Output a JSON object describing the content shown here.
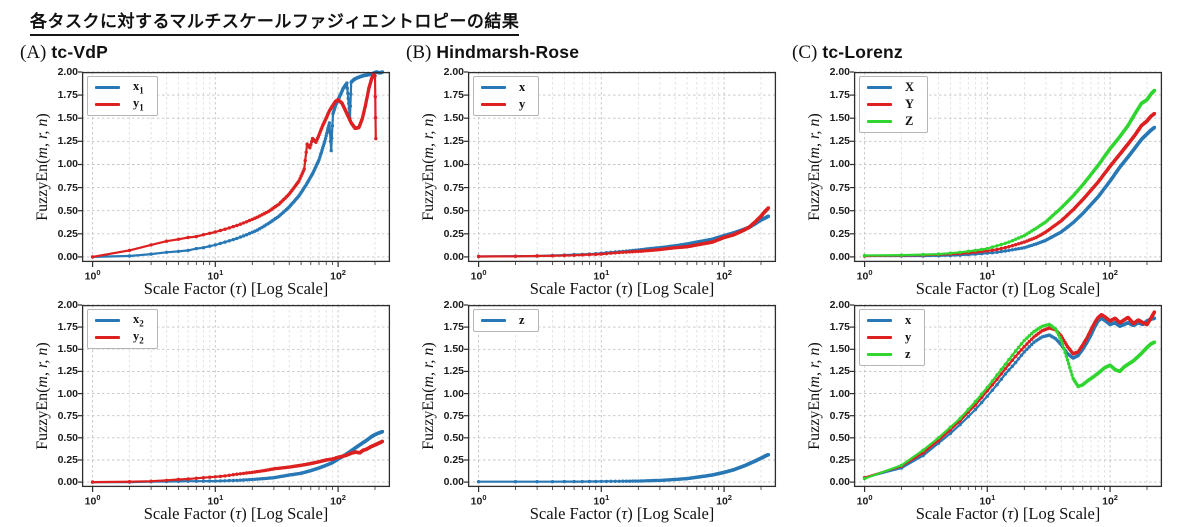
{
  "title": "各タスクに対するマルチスケールファジィエントロピーの結果",
  "panels_meta": [
    {
      "tag": "(A)",
      "name": "tc-VdP"
    },
    {
      "tag": "(B)",
      "name": "Hindmarsh-Rose"
    },
    {
      "tag": "(C)",
      "name": "tc-Lorenz"
    }
  ],
  "colors": {
    "blue": "#2878b5",
    "red": "#dd2020",
    "green": "#30d530",
    "grid_major": "#c4c4c4",
    "grid_minor": "#dddddd",
    "spine": "#2e2e2e"
  },
  "chart_data": {
    "type": "line",
    "xscale": "log",
    "xlim": [
      0.82,
      265
    ],
    "ylim": [
      -0.055,
      2.0
    ],
    "grid": "dashed-both",
    "legend_position": "upper-left",
    "xlabel": {
      "pre": "Scale Factor (",
      "italic": "τ",
      "post": ") [Log Scale]"
    },
    "ylabel": {
      "pre": "FuzzyEn(",
      "italic": "m, r, n",
      "post": ")"
    },
    "yticks": [
      "0.00",
      "0.25",
      "0.50",
      "0.75",
      "1.00",
      "1.25",
      "1.50",
      "1.75",
      "2.00"
    ],
    "xticks": [
      {
        "v": 1,
        "base": "10",
        "exp": "0"
      },
      {
        "v": 10,
        "base": "10",
        "exp": "1"
      },
      {
        "v": 100,
        "base": "10",
        "exp": "2"
      }
    ],
    "panels": [
      {
        "id": "A-top",
        "col": 0,
        "row": 0,
        "series": [
          {
            "label": "x",
            "sub": "1",
            "color": "blue",
            "x": [
              1,
              2,
              3,
              4,
              5,
              6,
              7,
              8,
              10,
              12,
              15,
              18,
              22,
              27,
              33,
              40,
              48,
              55,
              62,
              70,
              78,
              85,
              88,
              91,
              95,
              100,
              105,
              110,
              118,
              125,
              128,
              135,
              145,
              160,
              175,
              190,
              205,
              220,
              230
            ],
            "y": [
              0.0,
              0.01,
              0.03,
              0.05,
              0.06,
              0.07,
              0.09,
              0.1,
              0.13,
              0.16,
              0.2,
              0.24,
              0.29,
              0.36,
              0.44,
              0.54,
              0.66,
              0.78,
              0.9,
              1.05,
              1.25,
              1.45,
              1.15,
              1.55,
              1.63,
              1.7,
              1.76,
              1.82,
              1.88,
              1.5,
              1.89,
              1.92,
              1.94,
              1.96,
              1.97,
              1.98,
              2.0,
              1.99,
              2.0
            ]
          },
          {
            "label": "y",
            "sub": "1",
            "color": "red",
            "x": [
              1,
              2,
              3,
              4,
              5,
              6,
              7,
              8,
              10,
              12,
              15,
              18,
              22,
              27,
              33,
              40,
              48,
              53,
              56,
              59,
              62,
              66,
              70,
              75,
              80,
              85,
              90,
              95,
              100,
              108,
              118,
              128,
              138,
              148,
              158,
              168,
              178,
              188,
              195,
              200,
              203
            ],
            "y": [
              0.0,
              0.07,
              0.13,
              0.17,
              0.19,
              0.21,
              0.22,
              0.24,
              0.27,
              0.3,
              0.34,
              0.38,
              0.43,
              0.49,
              0.57,
              0.68,
              0.82,
              0.95,
              1.22,
              1.18,
              1.28,
              1.24,
              1.32,
              1.42,
              1.5,
              1.58,
              1.63,
              1.68,
              1.7,
              1.66,
              1.55,
              1.45,
              1.39,
              1.4,
              1.5,
              1.65,
              1.82,
              1.93,
              1.97,
              1.96,
              1.28
            ]
          }
        ]
      },
      {
        "id": "A-bottom",
        "col": 0,
        "row": 1,
        "series": [
          {
            "label": "x",
            "sub": "2",
            "color": "blue",
            "x": [
              1,
              2,
              3,
              4,
              5,
              6,
              8,
              10,
              12,
              15,
              20,
              25,
              30,
              40,
              50,
              60,
              70,
              80,
              90,
              100,
              115,
              130,
              150,
              170,
              190,
              210,
              230
            ],
            "y": [
              0.0,
              0.0,
              0.005,
              0.007,
              0.008,
              0.01,
              0.01,
              0.012,
              0.015,
              0.02,
              0.03,
              0.04,
              0.05,
              0.08,
              0.1,
              0.13,
              0.16,
              0.19,
              0.22,
              0.26,
              0.31,
              0.36,
              0.42,
              0.47,
              0.52,
              0.55,
              0.57
            ]
          },
          {
            "label": "y",
            "sub": "2",
            "color": "red",
            "x": [
              1,
              2,
              3,
              4,
              5,
              6,
              8,
              10,
              12,
              15,
              20,
              25,
              30,
              40,
              50,
              60,
              70,
              80,
              90,
              100,
              115,
              130,
              140,
              150,
              160,
              170,
              185,
              200,
              215,
              230
            ],
            "y": [
              0.0,
              0.005,
              0.01,
              0.02,
              0.03,
              0.035,
              0.05,
              0.06,
              0.07,
              0.09,
              0.11,
              0.13,
              0.15,
              0.17,
              0.19,
              0.21,
              0.23,
              0.25,
              0.26,
              0.28,
              0.3,
              0.33,
              0.34,
              0.33,
              0.36,
              0.37,
              0.4,
              0.42,
              0.44,
              0.46
            ]
          }
        ]
      },
      {
        "id": "B-top",
        "col": 1,
        "row": 0,
        "series": [
          {
            "label": "x",
            "sub": "",
            "color": "blue",
            "x": [
              1,
              2,
              3,
              4,
              5,
              6,
              8,
              10,
              12,
              15,
              20,
              25,
              30,
              40,
              50,
              60,
              80,
              100,
              120,
              140,
              160,
              180,
              200,
              215,
              230
            ],
            "y": [
              0.005,
              0.008,
              0.01,
              0.015,
              0.02,
              0.025,
              0.03,
              0.04,
              0.05,
              0.06,
              0.075,
              0.09,
              0.1,
              0.12,
              0.14,
              0.16,
              0.19,
              0.23,
              0.26,
              0.29,
              0.32,
              0.36,
              0.4,
              0.42,
              0.44
            ]
          },
          {
            "label": "y",
            "sub": "",
            "color": "red",
            "x": [
              1,
              2,
              3,
              4,
              5,
              6,
              8,
              10,
              12,
              15,
              20,
              25,
              30,
              40,
              50,
              60,
              80,
              100,
              120,
              140,
              160,
              180,
              200,
              215,
              230
            ],
            "y": [
              0.005,
              0.007,
              0.01,
              0.012,
              0.015,
              0.018,
              0.025,
              0.03,
              0.04,
              0.05,
              0.06,
              0.07,
              0.08,
              0.1,
              0.11,
              0.13,
              0.16,
              0.21,
              0.24,
              0.28,
              0.32,
              0.38,
              0.44,
              0.49,
              0.53
            ]
          }
        ]
      },
      {
        "id": "B-bottom",
        "col": 1,
        "row": 1,
        "series": [
          {
            "label": "z",
            "sub": "",
            "color": "blue",
            "x": [
              1,
              2,
              3,
              4,
              5,
              6,
              8,
              10,
              15,
              20,
              30,
              40,
              50,
              60,
              80,
              100,
              120,
              150,
              180,
              200,
              220,
              230
            ],
            "y": [
              0.005,
              0.005,
              0.005,
              0.005,
              0.006,
              0.006,
              0.007,
              0.008,
              0.01,
              0.012,
              0.02,
              0.03,
              0.04,
              0.055,
              0.08,
              0.11,
              0.14,
              0.19,
              0.24,
              0.27,
              0.3,
              0.31
            ]
          }
        ]
      },
      {
        "id": "C-top",
        "col": 2,
        "row": 0,
        "series": [
          {
            "label": "X",
            "sub": "",
            "color": "blue",
            "x": [
              1,
              2,
              3,
              4,
              5,
              6,
              8,
              10,
              12,
              15,
              20,
              25,
              30,
              40,
              50,
              60,
              80,
              100,
              120,
              140,
              160,
              180,
              200,
              215,
              230
            ],
            "y": [
              0.01,
              0.01,
              0.01,
              0.012,
              0.015,
              0.02,
              0.03,
              0.04,
              0.05,
              0.07,
              0.1,
              0.14,
              0.18,
              0.27,
              0.37,
              0.47,
              0.65,
              0.82,
              0.97,
              1.08,
              1.18,
              1.27,
              1.33,
              1.37,
              1.4
            ]
          },
          {
            "label": "Y",
            "sub": "",
            "color": "red",
            "x": [
              1,
              2,
              3,
              4,
              5,
              6,
              8,
              10,
              12,
              15,
              20,
              25,
              30,
              40,
              50,
              60,
              80,
              100,
              120,
              140,
              160,
              180,
              200,
              215,
              230
            ],
            "y": [
              0.01,
              0.015,
              0.02,
              0.025,
              0.03,
              0.035,
              0.05,
              0.065,
              0.08,
              0.11,
              0.16,
              0.21,
              0.27,
              0.39,
              0.51,
              0.62,
              0.81,
              0.98,
              1.11,
              1.22,
              1.32,
              1.42,
              1.47,
              1.52,
              1.55
            ]
          },
          {
            "label": "Z",
            "sub": "",
            "color": "green",
            "x": [
              1,
              2,
              3,
              4,
              5,
              6,
              8,
              10,
              12,
              15,
              20,
              25,
              30,
              40,
              50,
              60,
              80,
              100,
              120,
              140,
              160,
              180,
              200,
              215,
              230
            ],
            "y": [
              0.015,
              0.02,
              0.025,
              0.03,
              0.04,
              0.05,
              0.07,
              0.09,
              0.12,
              0.16,
              0.23,
              0.31,
              0.38,
              0.53,
              0.66,
              0.78,
              0.99,
              1.17,
              1.3,
              1.42,
              1.55,
              1.66,
              1.7,
              1.76,
              1.8
            ]
          }
        ]
      },
      {
        "id": "C-bottom",
        "col": 2,
        "row": 1,
        "series": [
          {
            "label": "x",
            "sub": "",
            "color": "blue",
            "x": [
              1,
              1.5,
              2,
              2.5,
              3,
              4,
              5,
              6,
              7,
              8,
              10,
              12,
              14,
              17,
              20,
              24,
              28,
              32,
              36,
              40,
              45,
              50,
              55,
              60,
              65,
              70,
              75,
              80,
              85,
              90,
              100,
              110,
              120,
              130,
              140,
              155,
              170,
              185,
              200,
              215,
              230
            ],
            "y": [
              0.05,
              0.1,
              0.16,
              0.23,
              0.3,
              0.44,
              0.55,
              0.65,
              0.74,
              0.82,
              0.97,
              1.1,
              1.22,
              1.35,
              1.47,
              1.58,
              1.64,
              1.66,
              1.62,
              1.55,
              1.45,
              1.4,
              1.43,
              1.5,
              1.58,
              1.66,
              1.75,
              1.82,
              1.85,
              1.83,
              1.78,
              1.8,
              1.76,
              1.78,
              1.8,
              1.77,
              1.8,
              1.78,
              1.82,
              1.84,
              1.85
            ]
          },
          {
            "label": "y",
            "sub": "",
            "color": "red",
            "x": [
              1,
              1.5,
              2,
              2.5,
              3,
              4,
              5,
              6,
              7,
              8,
              10,
              12,
              14,
              17,
              20,
              24,
              28,
              32,
              36,
              40,
              45,
              50,
              55,
              60,
              65,
              70,
              75,
              80,
              85,
              90,
              100,
              110,
              120,
              130,
              140,
              155,
              170,
              185,
              200,
              215,
              230
            ],
            "y": [
              0.05,
              0.11,
              0.18,
              0.26,
              0.33,
              0.47,
              0.59,
              0.69,
              0.79,
              0.87,
              1.03,
              1.16,
              1.28,
              1.42,
              1.53,
              1.64,
              1.71,
              1.74,
              1.72,
              1.65,
              1.53,
              1.45,
              1.47,
              1.55,
              1.63,
              1.72,
              1.8,
              1.86,
              1.89,
              1.87,
              1.82,
              1.85,
              1.8,
              1.83,
              1.86,
              1.79,
              1.83,
              1.8,
              1.78,
              1.85,
              1.92
            ]
          },
          {
            "label": "z",
            "sub": "",
            "color": "green",
            "x": [
              1,
              1.5,
              2,
              2.5,
              3,
              4,
              5,
              6,
              7,
              8,
              10,
              12,
              14,
              17,
              20,
              24,
              28,
              32,
              36,
              40,
              45,
              50,
              55,
              60,
              65,
              70,
              75,
              80,
              85,
              90,
              100,
              110,
              120,
              130,
              140,
              155,
              170,
              185,
              200,
              215,
              230
            ],
            "y": [
              0.04,
              0.11,
              0.19,
              0.28,
              0.36,
              0.5,
              0.62,
              0.72,
              0.82,
              0.91,
              1.07,
              1.21,
              1.33,
              1.48,
              1.6,
              1.7,
              1.76,
              1.78,
              1.73,
              1.6,
              1.38,
              1.17,
              1.08,
              1.1,
              1.14,
              1.17,
              1.2,
              1.23,
              1.26,
              1.29,
              1.32,
              1.27,
              1.25,
              1.3,
              1.33,
              1.37,
              1.42,
              1.47,
              1.52,
              1.56,
              1.58
            ]
          }
        ]
      }
    ]
  }
}
